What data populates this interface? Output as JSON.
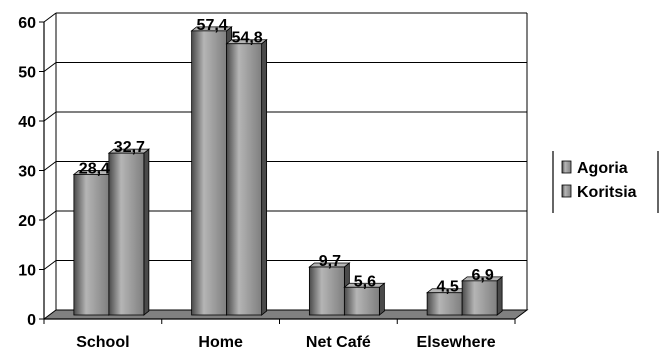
{
  "chart_data": {
    "type": "bar",
    "categories": [
      "School",
      "Home",
      "Net Café",
      "Elsewhere"
    ],
    "series": [
      {
        "name": "Agoria",
        "values": [
          28.4,
          57.4,
          9.7,
          4.5
        ],
        "labels": [
          "28,4",
          "57,4",
          "9,7",
          "4,5"
        ]
      },
      {
        "name": "Koritsia",
        "values": [
          32.7,
          54.8,
          5.6,
          6.9
        ],
        "labels": [
          "32,7",
          "54,8",
          "5,6",
          "6,9"
        ]
      }
    ],
    "ylim": [
      0,
      60
    ],
    "yticks": [
      0,
      10,
      20,
      30,
      40,
      50,
      60
    ],
    "grid": true,
    "legend_position": "right",
    "colors": {
      "bar": "#7f7f7f",
      "bar_light": "#b5b5b5",
      "bar_dark": "#4a4a4a",
      "floor": "#808080"
    }
  }
}
